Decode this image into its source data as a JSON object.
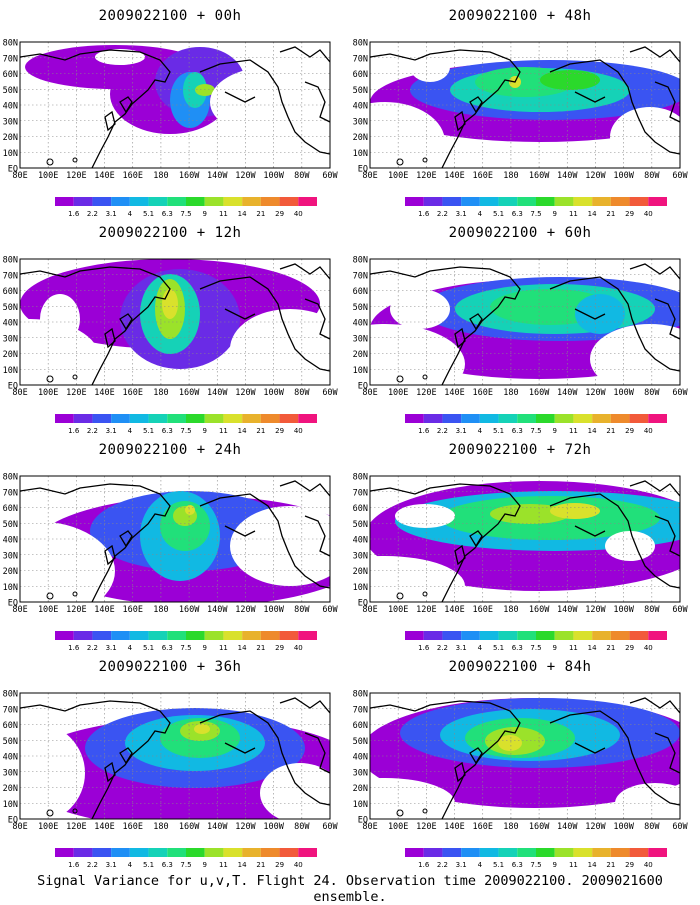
{
  "panels": [
    {
      "title": "2009022100 + 00h"
    },
    {
      "title": "2009022100 + 48h"
    },
    {
      "title": "2009022100 + 12h"
    },
    {
      "title": "2009022100 + 60h"
    },
    {
      "title": "2009022100 + 24h"
    },
    {
      "title": "2009022100 + 72h"
    },
    {
      "title": "2009022100 + 36h"
    },
    {
      "title": "2009022100 + 84h"
    }
  ],
  "lat_labels": [
    "80N",
    "70N",
    "60N",
    "50N",
    "40N",
    "30N",
    "20N",
    "10N",
    "EQ"
  ],
  "lon_labels": [
    "80E",
    "100E",
    "120E",
    "140E",
    "160E",
    "180",
    "160W",
    "140W",
    "120W",
    "100W",
    "80W",
    "60W"
  ],
  "colorbar": {
    "levels": [
      "1.6",
      "2.2",
      "3.1",
      "4",
      "5.1",
      "6.3",
      "7.5",
      "9",
      "11",
      "14",
      "21",
      "29",
      "40"
    ],
    "colors": [
      "#9b00d6",
      "#6a2be6",
      "#3a54f2",
      "#1f8ff5",
      "#11b9e3",
      "#15d2b7",
      "#21e07a",
      "#2bd92b",
      "#9be22a",
      "#d9e12c",
      "#e8b22c",
      "#ee8a2c",
      "#f25a3a",
      "#f0147e"
    ]
  },
  "caption": "Signal Variance for u,v,T. Flight 24. Observation time 2009022100. 2009021600 ensemble."
}
